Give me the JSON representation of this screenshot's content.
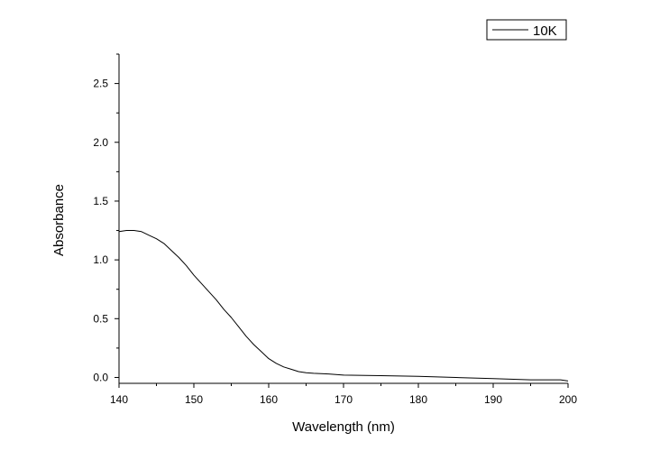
{
  "chart_data": {
    "type": "line",
    "title": "",
    "xlabel": "Wavelength (nm)",
    "ylabel": "Absorbance",
    "xlim": [
      140,
      200
    ],
    "ylim": [
      -0.05,
      2.75
    ],
    "x_ticks": [
      140,
      150,
      160,
      170,
      180,
      190,
      200
    ],
    "x_tick_labels": [
      "140",
      "150",
      "160",
      "170",
      "180",
      "190",
      "200"
    ],
    "y_ticks": [
      0.0,
      0.5,
      1.0,
      1.5,
      2.0,
      2.5
    ],
    "y_tick_labels": [
      "0.0",
      "0.5",
      "1.0",
      "1.5",
      "2.0",
      "2.5"
    ],
    "grid": false,
    "legend": {
      "position": "top-right"
    },
    "series": [
      {
        "name": "10K",
        "color": "#000000",
        "x": [
          140,
          141,
          142,
          143,
          144,
          145,
          146,
          147,
          148,
          149,
          150,
          151,
          152,
          153,
          154,
          155,
          156,
          157,
          158,
          159,
          160,
          161,
          162,
          163,
          164,
          165,
          166,
          168,
          170,
          172,
          175,
          180,
          185,
          190,
          195,
          199,
          200
        ],
        "y": [
          1.24,
          1.25,
          1.25,
          1.24,
          1.21,
          1.18,
          1.14,
          1.08,
          1.02,
          0.95,
          0.87,
          0.8,
          0.73,
          0.66,
          0.58,
          0.51,
          0.43,
          0.35,
          0.28,
          0.22,
          0.16,
          0.12,
          0.09,
          0.07,
          0.05,
          0.04,
          0.035,
          0.03,
          0.02,
          0.018,
          0.015,
          0.01,
          0.0,
          -0.01,
          -0.02,
          -0.02,
          -0.03
        ]
      }
    ]
  }
}
